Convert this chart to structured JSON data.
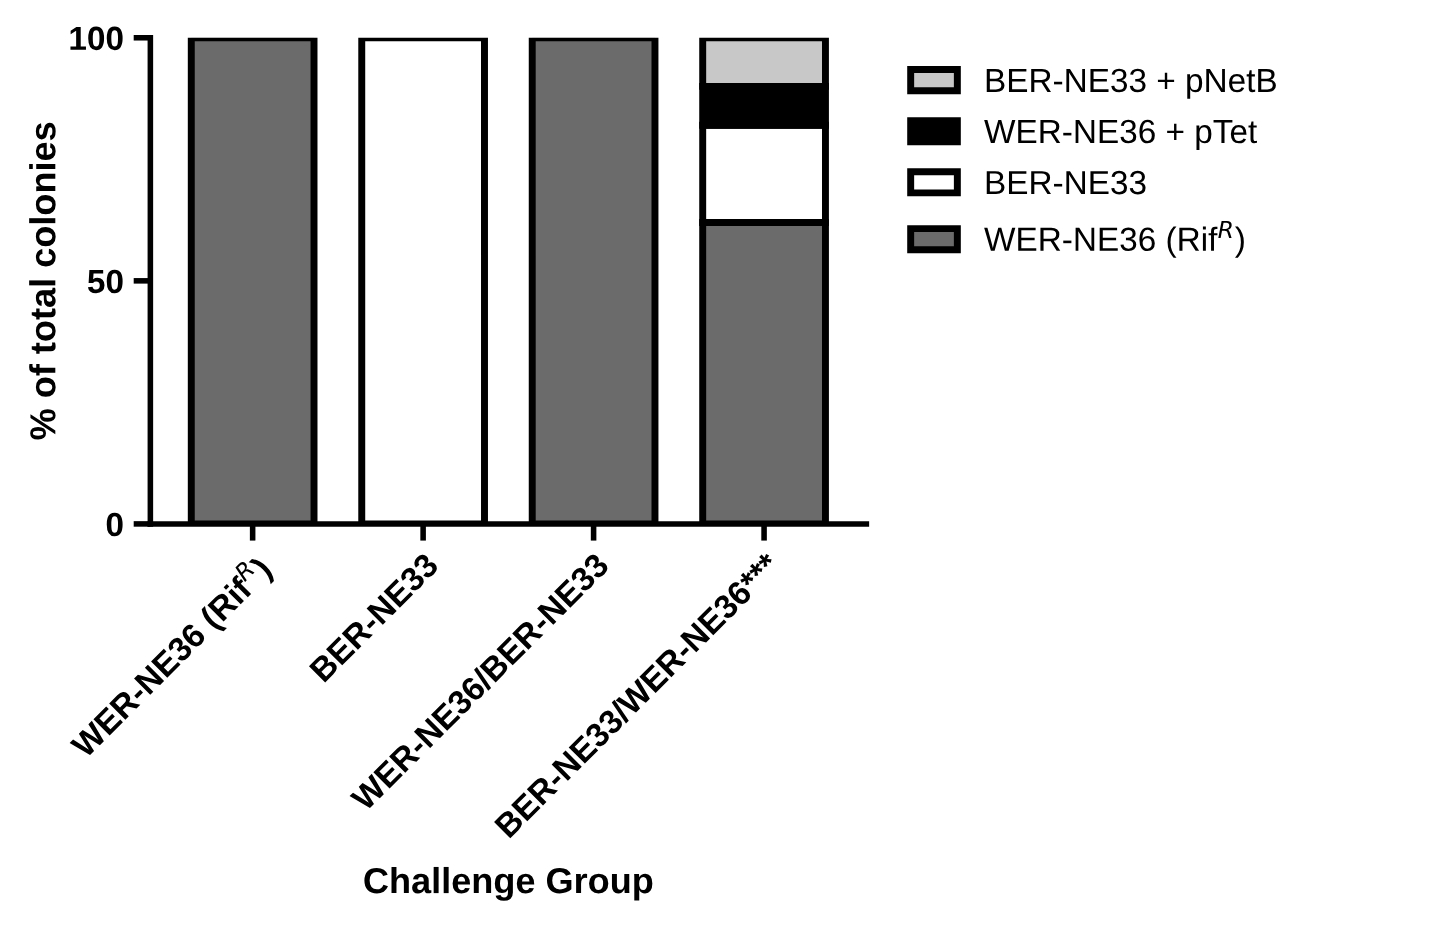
{
  "chart_data": {
    "type": "bar",
    "stacked": true,
    "xlabel": "Challenge Group",
    "ylabel": "% of total colonies",
    "categories": [
      "WER-NE36 (Rif$^{R}$)",
      "BER-NE33",
      "WER-NE36/BER-NE33",
      "BER-NE33/WER-NE36***"
    ],
    "series": [
      {
        "name": "WER-NE36 (Rif$^{R}$)",
        "color": "#6b6b6b",
        "values": [
          100,
          null,
          100,
          62
        ]
      },
      {
        "name": "BER-NE33",
        "color": "#ffffff",
        "values": [
          null,
          100,
          null,
          20
        ]
      },
      {
        "name": "WER-NE36 + pTet",
        "color": "#000000",
        "values": [
          null,
          null,
          null,
          8
        ]
      },
      {
        "name": "BER-NE33 + pNetB",
        "color": "#c8c8c8",
        "values": [
          null,
          null,
          null,
          10
        ]
      }
    ],
    "ylim": [
      0,
      100
    ],
    "yticks": [
      0,
      50,
      100
    ],
    "grid": false,
    "legend": "right"
  }
}
